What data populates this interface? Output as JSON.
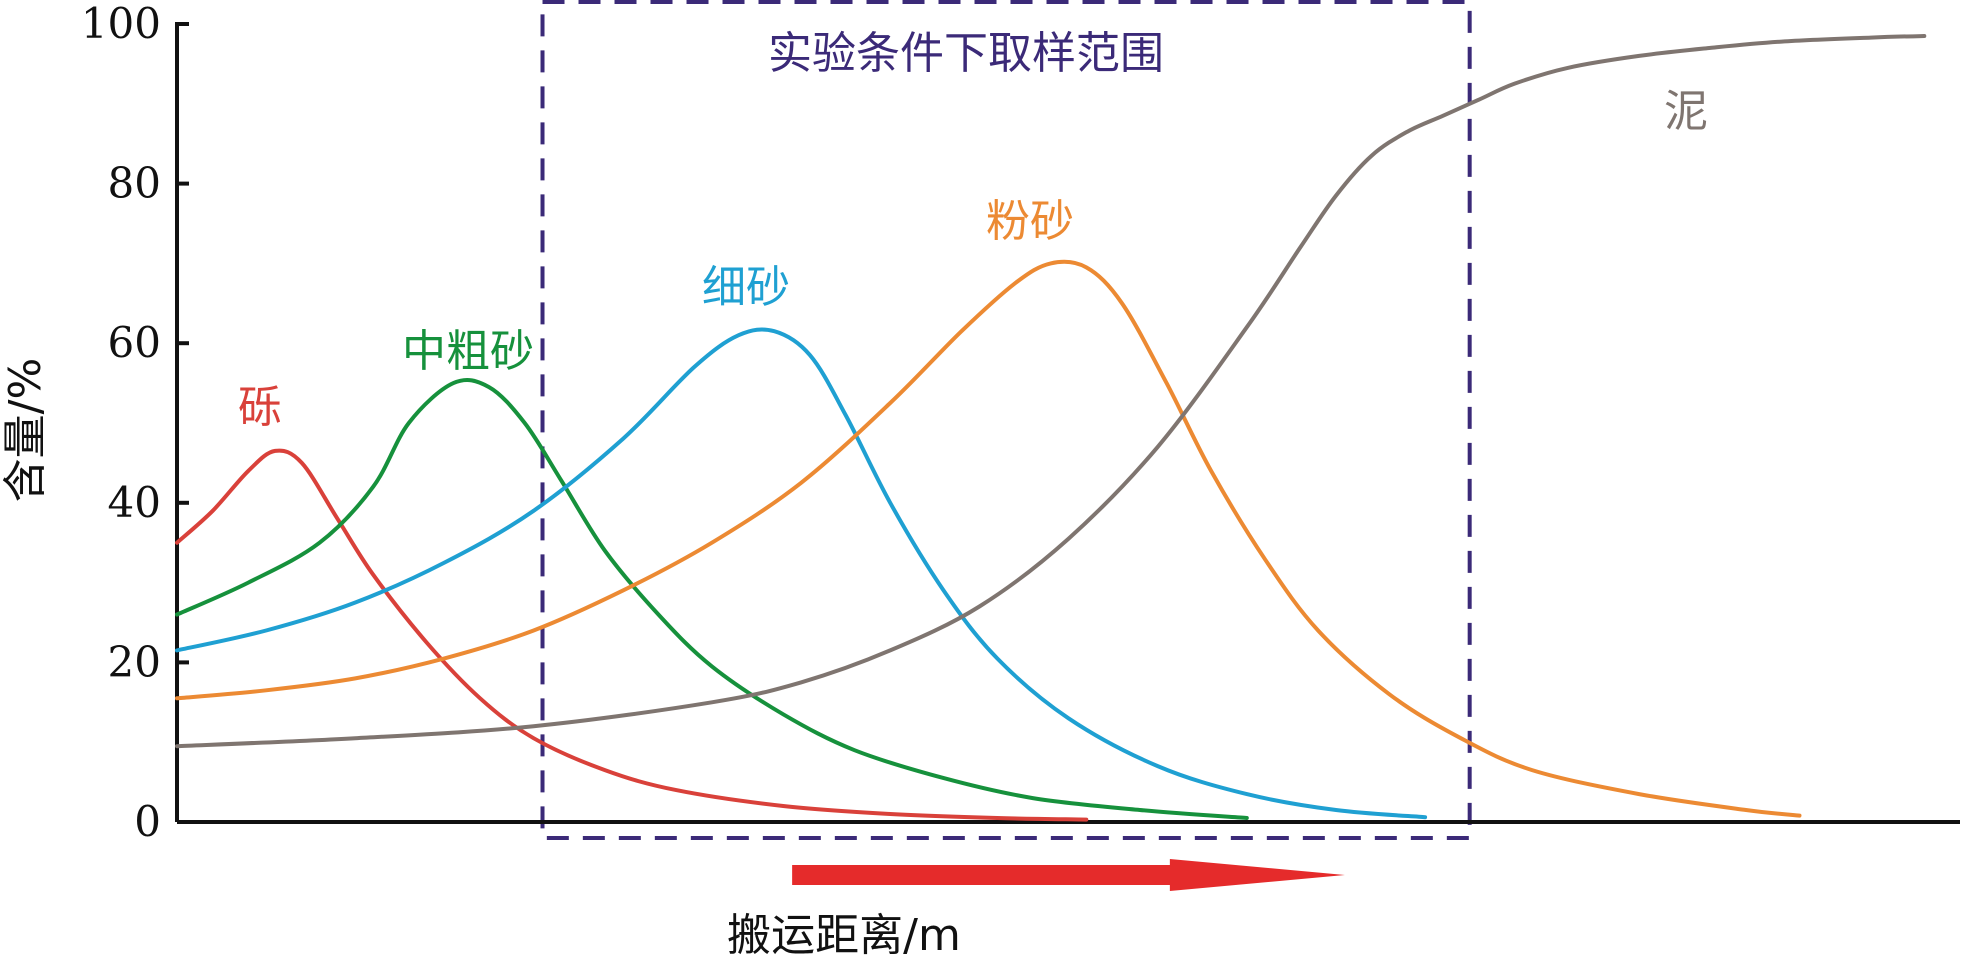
{
  "chart_data": {
    "type": "line",
    "xlabel": "搬运距离/m",
    "ylabel": "含量/%",
    "ylim": [
      0,
      100
    ],
    "xlim": [
      0,
      100
    ],
    "yticks": [
      "0",
      "20",
      "40",
      "60",
      "80",
      "100"
    ],
    "grid": false,
    "sampling_range": {
      "label": "实验条件下取样范围",
      "x": [
        20.5,
        72.5
      ],
      "color": "#3b2a78"
    },
    "transport_arrow": {
      "x": [
        34.5,
        65.5
      ],
      "color": "#e52b2b"
    },
    "series": [
      {
        "name": "砾",
        "color": "#d9413a",
        "label": "砾",
        "x": [
          0,
          2,
          4,
          5.5,
          7,
          9,
          11,
          14,
          17,
          20,
          24,
          28,
          34,
          40,
          46,
          51
        ],
        "y": [
          35,
          39,
          44,
          46.5,
          45,
          38,
          31,
          22.5,
          15.5,
          10.5,
          6.5,
          4,
          2,
          1,
          0.5,
          0.3
        ]
      },
      {
        "name": "中粗砂",
        "color": "#16913c",
        "label": "中粗砂",
        "x": [
          0,
          4,
          8,
          11,
          13,
          15.5,
          17.5,
          19.5,
          21.5,
          24,
          27,
          30,
          34,
          38,
          43,
          48,
          54,
          60
        ],
        "y": [
          26,
          30,
          35,
          42,
          50,
          55,
          54.5,
          50,
          43,
          34,
          26,
          19.5,
          13.5,
          9,
          5.5,
          3,
          1.5,
          0.5
        ]
      },
      {
        "name": "细砂",
        "color": "#1fa0d2",
        "label": "细砂",
        "x": [
          0,
          5,
          10,
          15,
          20,
          25,
          29,
          31.5,
          33.5,
          35.5,
          37.5,
          40,
          43,
          46,
          50,
          55,
          60,
          65,
          70
        ],
        "y": [
          21.5,
          24,
          27.5,
          32.5,
          39,
          48,
          57,
          61,
          61.5,
          58.5,
          51,
          40,
          29,
          20.5,
          13,
          7,
          3.5,
          1.5,
          0.6
        ]
      },
      {
        "name": "粉砂",
        "color": "#ec8a33",
        "label": "粉砂",
        "x": [
          0,
          5,
          10,
          15,
          20,
          25,
          30,
          35,
          40,
          44,
          47,
          49,
          51,
          53,
          55.5,
          58,
          61,
          64,
          68,
          72,
          76,
          82,
          88,
          91
        ],
        "y": [
          15.5,
          16.5,
          18,
          20.5,
          24,
          29,
          35,
          42.5,
          52.5,
          61.5,
          67.5,
          70,
          69.5,
          65,
          55,
          44,
          33,
          24,
          16,
          10.5,
          6.5,
          3.5,
          1.5,
          0.8
        ]
      },
      {
        "name": "泥",
        "color": "#7f7570",
        "label": "泥",
        "x": [
          0,
          10,
          20,
          30,
          35,
          40,
          45,
          50,
          55,
          60,
          63,
          65,
          67,
          69,
          71,
          73,
          75,
          78,
          82,
          86,
          90,
          95,
          98
        ],
        "y": [
          9.5,
          10.5,
          12,
          15,
          17.5,
          21.5,
          27,
          35.5,
          47,
          62,
          72,
          78.5,
          83.5,
          86.5,
          88.5,
          90.5,
          92.5,
          94.5,
          96,
          97,
          97.8,
          98.3,
          98.5
        ]
      }
    ]
  }
}
